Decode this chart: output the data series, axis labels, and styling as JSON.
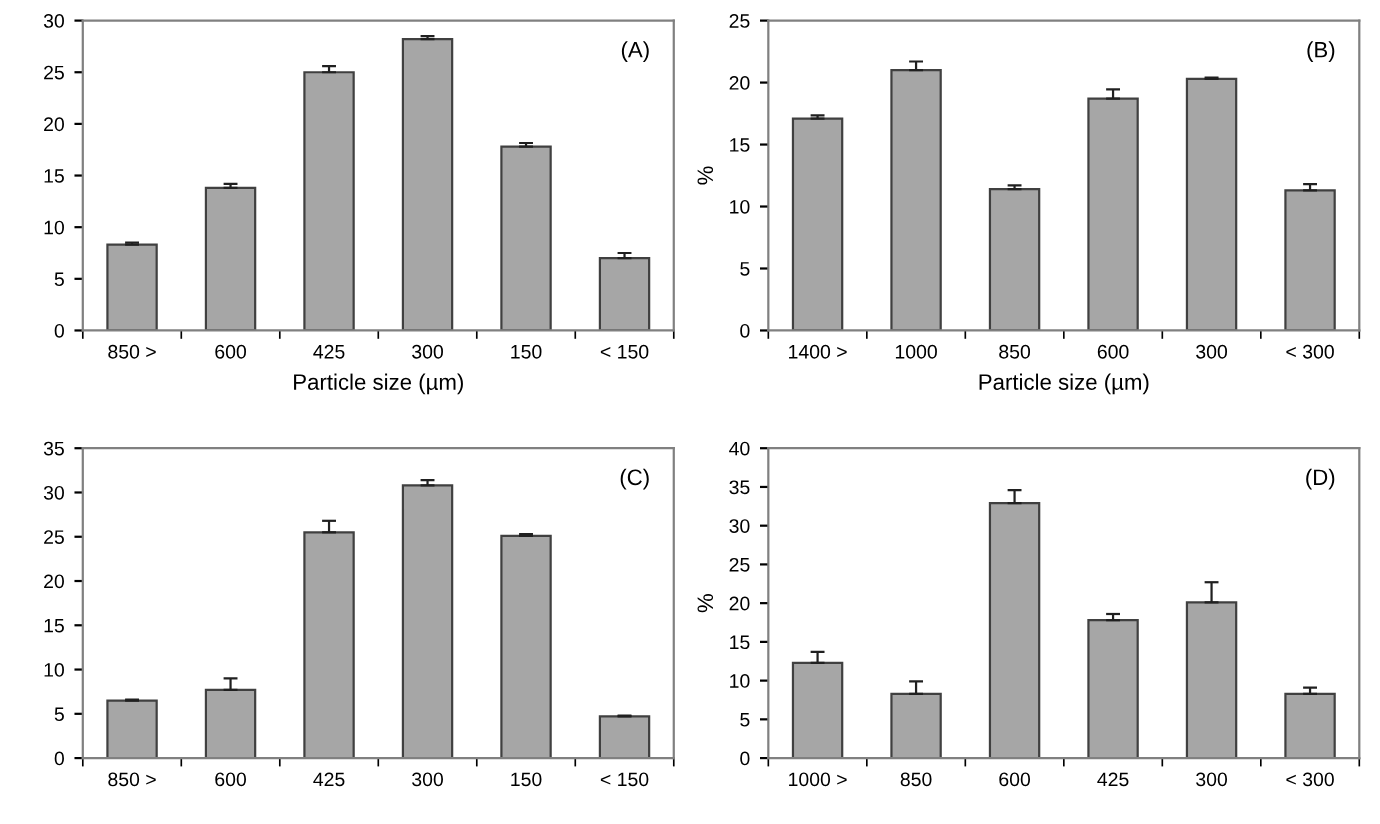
{
  "chart_data": [
    {
      "type": "bar",
      "xlabel": "Particle size (µm)",
      "annotations": [
        "(A)"
      ],
      "categories": [
        "850 >",
        "600",
        "425",
        "300",
        "150",
        "< 150"
      ],
      "values": [
        8.3,
        13.8,
        25.0,
        28.2,
        17.8,
        7.0
      ],
      "errors": [
        [
          8.3,
          8.5
        ],
        [
          13.8,
          14.2
        ],
        [
          25.0,
          25.6
        ],
        [
          28.2,
          28.5
        ],
        [
          17.8,
          18.15
        ],
        [
          7.0,
          7.5
        ]
      ],
      "color": "#a6a6a6",
      "ylim": [
        0,
        30
      ],
      "yticks": [
        0,
        5,
        10,
        15,
        20,
        25,
        30
      ],
      "grid": false
    },
    {
      "type": "bar",
      "xlabel": "Particle size (µm)",
      "ylabel": "%",
      "annotations": [
        "(B)"
      ],
      "categories": [
        "1400 >",
        "1000",
        "850",
        "600",
        "300",
        "< 300"
      ],
      "values": [
        17.1,
        21.0,
        11.4,
        18.7,
        20.3,
        11.3
      ],
      "errors": [
        [
          17.1,
          17.35
        ],
        [
          21.0,
          21.7
        ],
        [
          11.4,
          11.7
        ],
        [
          18.7,
          19.45
        ],
        [
          20.3,
          20.4
        ],
        [
          11.3,
          11.8
        ]
      ],
      "color": "#a6a6a6",
      "ylim": [
        0,
        25
      ],
      "yticks": [
        0,
        5,
        10,
        15,
        20,
        25
      ],
      "grid": false
    },
    {
      "type": "bar",
      "annotations": [
        "(C)"
      ],
      "categories": [
        "850 >",
        "600",
        "425",
        "300",
        "150",
        "< 150"
      ],
      "values": [
        6.5,
        7.7,
        25.5,
        30.8,
        25.1,
        4.7
      ],
      "errors": [
        [
          6.5,
          6.6
        ],
        [
          7.7,
          9.0
        ],
        [
          25.5,
          26.8
        ],
        [
          30.8,
          31.4
        ],
        [
          25.1,
          25.3
        ],
        [
          4.7,
          4.8
        ]
      ],
      "color": "#a6a6a6",
      "ylim": [
        0,
        35
      ],
      "yticks": [
        0,
        5,
        10,
        15,
        20,
        25,
        30,
        35
      ],
      "grid": false
    },
    {
      "type": "bar",
      "ylabel": "%",
      "annotations": [
        "(D)"
      ],
      "categories": [
        "1000 >",
        "850",
        "600",
        "425",
        "300",
        "< 300"
      ],
      "values": [
        12.3,
        8.3,
        32.9,
        17.8,
        20.1,
        8.3
      ],
      "errors": [
        [
          12.3,
          13.7
        ],
        [
          8.3,
          9.9
        ],
        [
          32.9,
          34.6
        ],
        [
          17.8,
          18.6
        ],
        [
          20.1,
          22.7
        ],
        [
          8.3,
          9.1
        ]
      ],
      "color": "#a6a6a6",
      "ylim": [
        0,
        40
      ],
      "yticks": [
        0,
        5,
        10,
        15,
        20,
        25,
        30,
        35,
        40
      ],
      "grid": false
    }
  ]
}
